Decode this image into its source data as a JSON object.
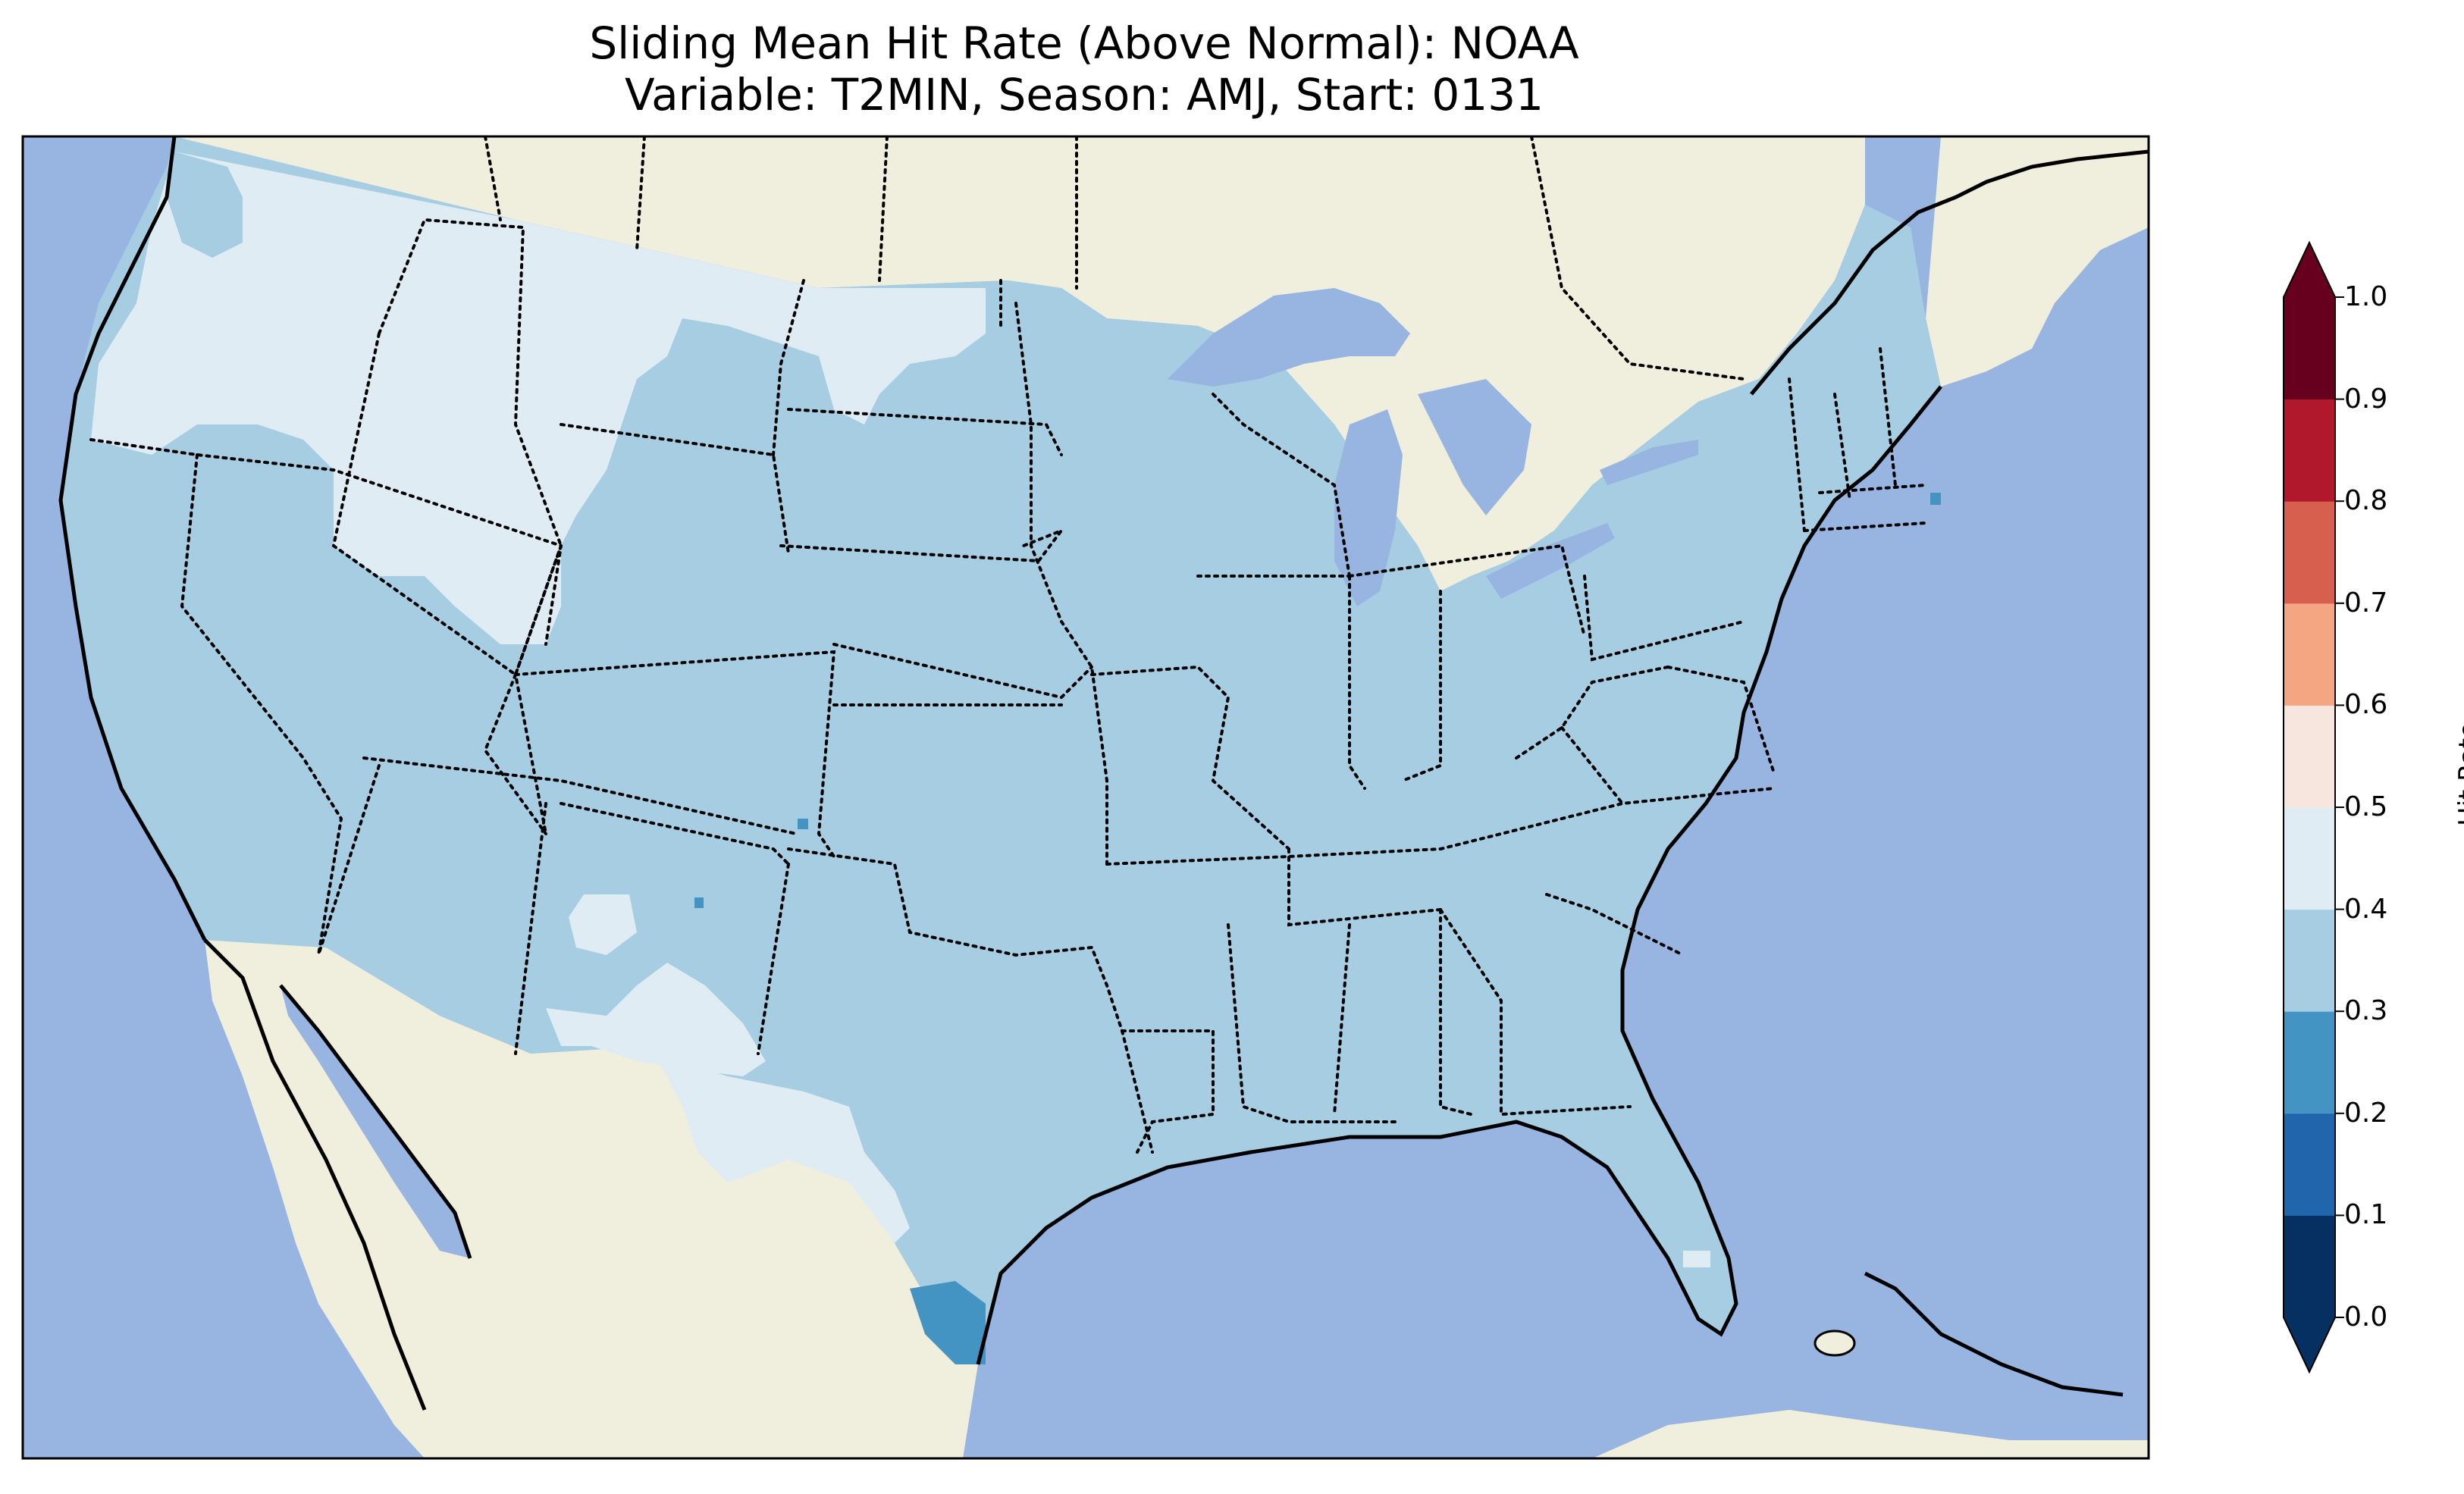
{
  "title": {
    "line1": "Sliding Mean Hit Rate (Above Normal): NOAA",
    "line2": "Variable: T2MIN, Season: AMJ, Start: 0131"
  },
  "colors": {
    "ocean": "#98b4e0",
    "land_outside": "#f0eedd",
    "frame": "#000000"
  },
  "colorbar": {
    "label": "Hit Rate",
    "ticks": [
      "0.0",
      "0.1",
      "0.2",
      "0.3",
      "0.4",
      "0.5",
      "0.6",
      "0.7",
      "0.8",
      "0.9",
      "1.0"
    ],
    "bins": [
      {
        "range": [
          0.0,
          0.1
        ],
        "color": "#053061"
      },
      {
        "range": [
          0.1,
          0.2
        ],
        "color": "#2166ac"
      },
      {
        "range": [
          0.2,
          0.3
        ],
        "color": "#4393c3"
      },
      {
        "range": [
          0.3,
          0.4
        ],
        "color": "#a6cde2"
      },
      {
        "range": [
          0.4,
          0.5
        ],
        "color": "#e0ecf3"
      },
      {
        "range": [
          0.5,
          0.6
        ],
        "color": "#f7e6de"
      },
      {
        "range": [
          0.6,
          0.7
        ],
        "color": "#f4a582"
      },
      {
        "range": [
          0.7,
          0.8
        ],
        "color": "#d6604d"
      },
      {
        "range": [
          0.8,
          0.9
        ],
        "color": "#b2182b"
      },
      {
        "range": [
          0.9,
          1.0
        ],
        "color": "#67001f"
      }
    ],
    "extend": "both"
  },
  "map_data": {
    "dominant_bin": "0.3-0.4",
    "regions": [
      {
        "area": "Most of CONUS",
        "bin": "0.3-0.4"
      },
      {
        "area": "Pacific Northwest / Northern Rockies / northern Montana",
        "bin": "0.4-0.5"
      },
      {
        "area": "New Mexico and West Texas patches",
        "bin": "0.4-0.5"
      },
      {
        "area": "South Texas coast",
        "bin": "0.2-0.3"
      },
      {
        "area": "Southern Florida patch",
        "bin": "0.4-0.5"
      }
    ]
  }
}
